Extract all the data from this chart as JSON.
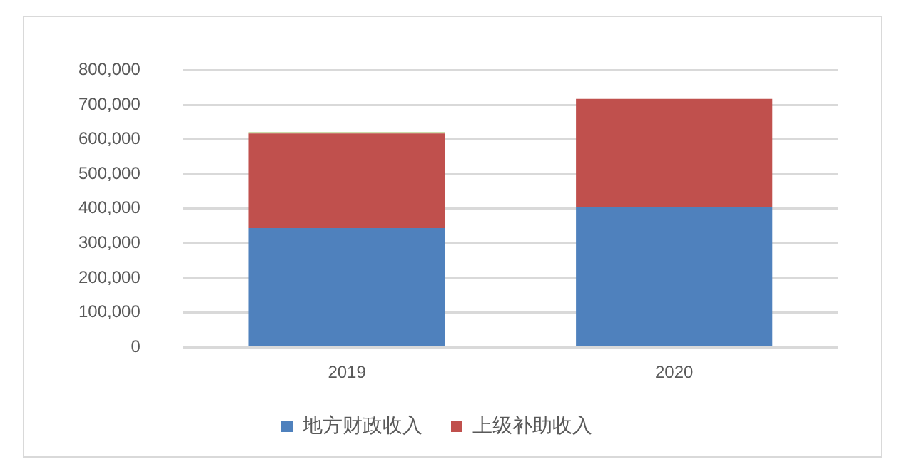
{
  "chart_data": {
    "type": "bar",
    "stacked": true,
    "categories": [
      "2019",
      "2020"
    ],
    "series": [
      {
        "name": "地方财政收入",
        "color": "#4f81bd",
        "values": [
          344000,
          406000
        ]
      },
      {
        "name": "上级补助收入",
        "color": "#c0504d",
        "values": [
          273000,
          311000
        ]
      },
      {
        "color": "#9bbb59",
        "values": [
          4000,
          null
        ]
      }
    ],
    "ylim": [
      0,
      800000
    ],
    "yticks": [
      {
        "value": 0,
        "label": "0"
      },
      {
        "value": 100000,
        "label": "100,000"
      },
      {
        "value": 200000,
        "label": "200,000"
      },
      {
        "value": 300000,
        "label": "300,000"
      },
      {
        "value": 400000,
        "label": "400,000"
      },
      {
        "value": 500000,
        "label": "500,000"
      },
      {
        "value": 600000,
        "label": "600,000"
      },
      {
        "value": 700000,
        "label": "700,000"
      },
      {
        "value": 800000,
        "label": "800,000"
      }
    ],
    "grid": "y",
    "legend": "bottom"
  }
}
